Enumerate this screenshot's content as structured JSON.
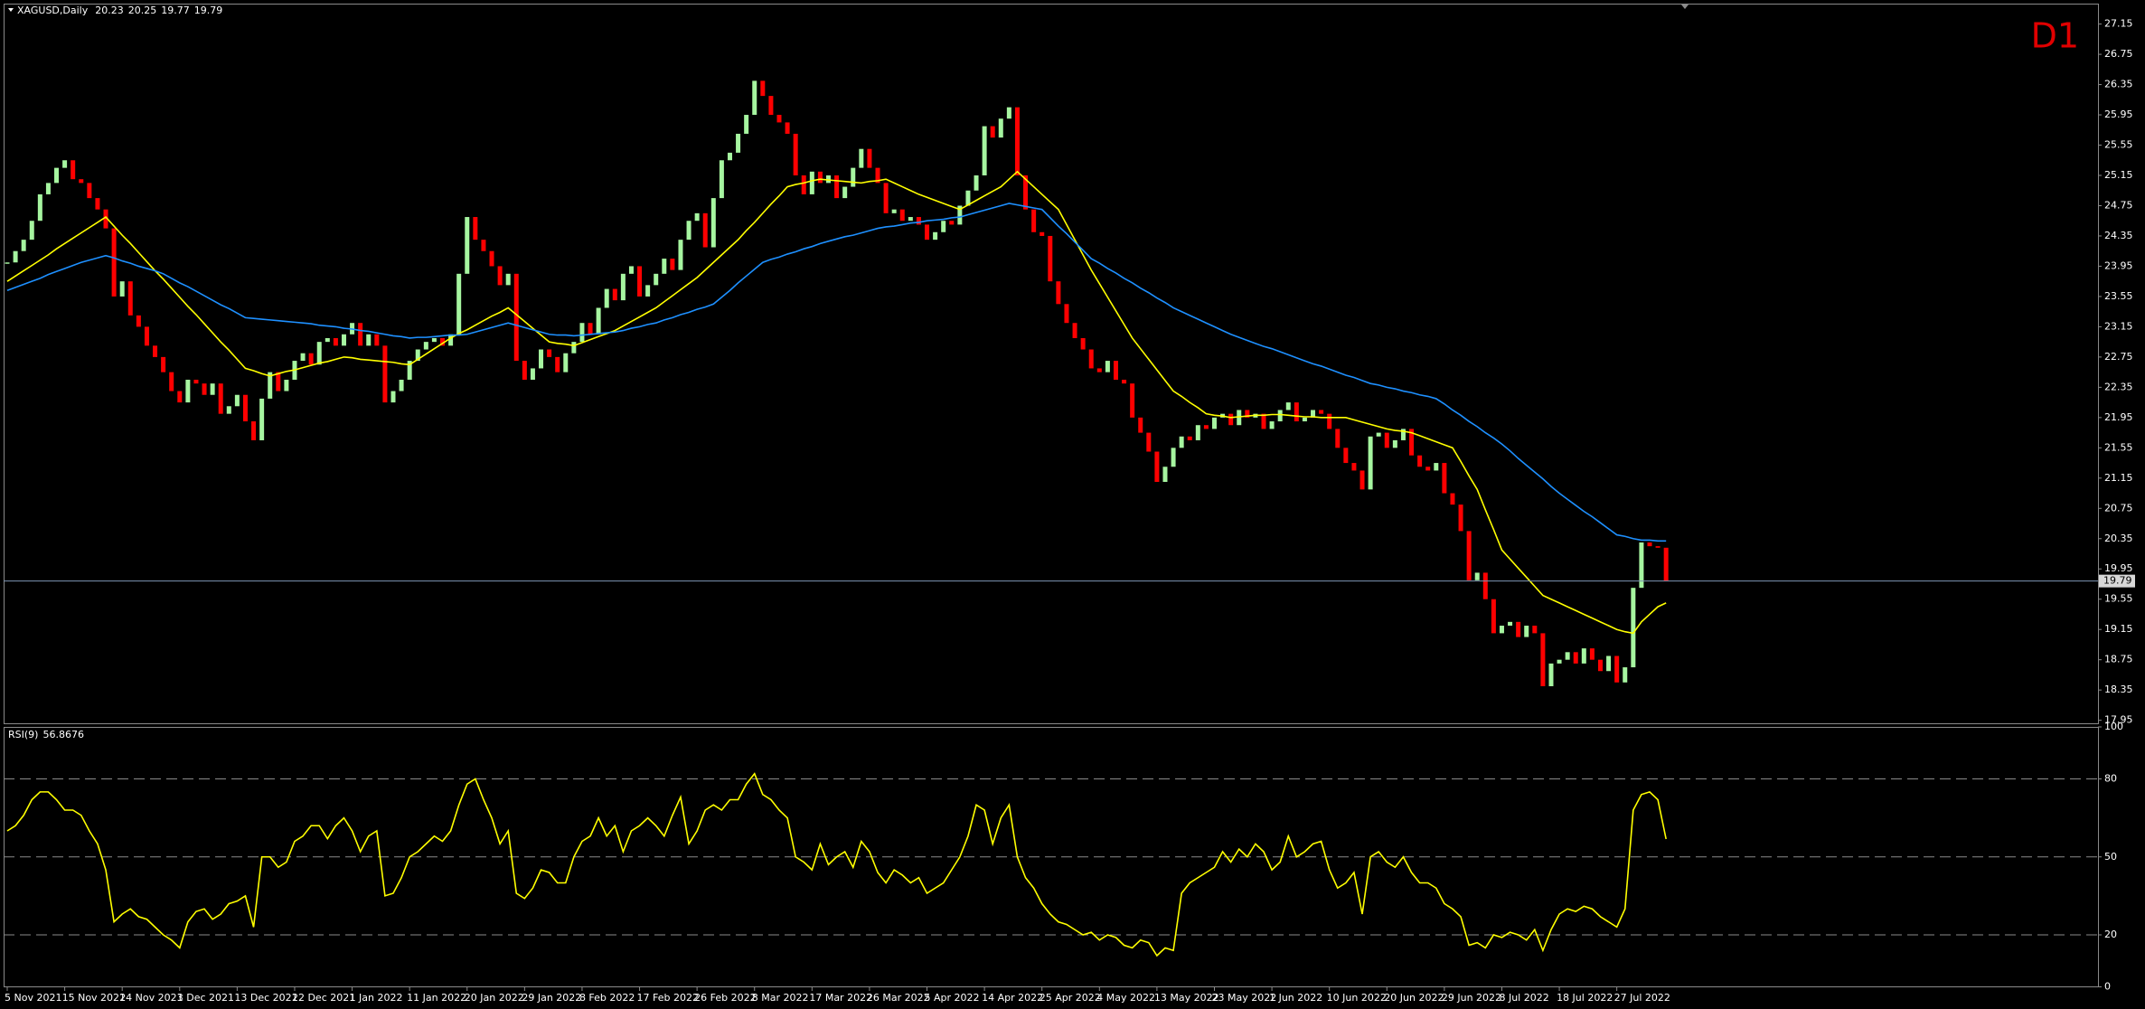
{
  "chart_data": [
    {
      "type": "candlestick",
      "title": "XAGUSD,Daily",
      "ohlc": [
        20.23,
        20.25,
        19.77,
        19.79
      ],
      "annotation": "D1",
      "categories": [
        "5 Nov 2021",
        null,
        null,
        null,
        null,
        null,
        null,
        "15 Nov 2021",
        null,
        null,
        null,
        null,
        null,
        null,
        "24 Nov 2021",
        null,
        null,
        null,
        null,
        null,
        null,
        "3 Dec 2021",
        null,
        null,
        null,
        null,
        null,
        null,
        "13 Dec 2021",
        null,
        null,
        null,
        null,
        null,
        null,
        "22 Dec 2021",
        null,
        null,
        null,
        null,
        null,
        null,
        "1 Jan 2022",
        null,
        null,
        null,
        null,
        null,
        null,
        "11 Jan 2022",
        null,
        null,
        null,
        null,
        null,
        null,
        "20 Jan 2022",
        null,
        null,
        null,
        null,
        null,
        null,
        "29 Jan 2022",
        null,
        null,
        null,
        null,
        null,
        null,
        "8 Feb 2022",
        null,
        null,
        null,
        null,
        null,
        null,
        "17 Feb 2022",
        null,
        null,
        null,
        null,
        null,
        null,
        "26 Feb 2022",
        null,
        null,
        null,
        null,
        null,
        null,
        "8 Mar 2022",
        null,
        null,
        null,
        null,
        null,
        null,
        "17 Mar 2022",
        null,
        null,
        null,
        null,
        null,
        null,
        "26 Mar 2022",
        null,
        null,
        null,
        null,
        null,
        null,
        "5 Apr 2022",
        null,
        null,
        null,
        null,
        null,
        null,
        "14 Apr 2022",
        null,
        null,
        null,
        null,
        null,
        null,
        "25 Apr 2022",
        null,
        null,
        null,
        null,
        null,
        null,
        "4 May 2022",
        null,
        null,
        null,
        null,
        null,
        null,
        "13 May 2022",
        null,
        null,
        null,
        null,
        null,
        null,
        "23 May 2022",
        null,
        null,
        null,
        null,
        null,
        null,
        "1 Jun 2022",
        null,
        null,
        null,
        null,
        null,
        null,
        "10 Jun 2022",
        null,
        null,
        null,
        null,
        null,
        null,
        "20 Jun 2022",
        null,
        null,
        null,
        null,
        null,
        null,
        "29 Jun 2022",
        null,
        null,
        null,
        null,
        null,
        null,
        "8 Jul 2022",
        null,
        null,
        null,
        null,
        null,
        null,
        "18 Jul 2022",
        null,
        null,
        null,
        null,
        null,
        null,
        "27 Jul 2022",
        null,
        null,
        null,
        null,
        null,
        null
      ],
      "close": [
        24.0,
        24.15,
        24.3,
        24.55,
        24.9,
        25.05,
        25.25,
        25.35,
        25.1,
        25.05,
        24.85,
        24.7,
        24.45,
        23.55,
        23.75,
        23.3,
        23.15,
        22.9,
        22.75,
        22.55,
        22.3,
        22.15,
        22.45,
        22.4,
        22.25,
        22.4,
        22.0,
        22.1,
        22.25,
        21.9,
        21.65,
        22.2,
        22.55,
        22.3,
        22.45,
        22.7,
        22.8,
        22.65,
        22.95,
        23.0,
        22.9,
        23.05,
        23.2,
        22.9,
        23.05,
        22.9,
        22.15,
        22.3,
        22.45,
        22.7,
        22.85,
        22.95,
        23.0,
        22.9,
        23.05,
        23.85,
        24.6,
        24.3,
        24.15,
        23.95,
        23.7,
        23.85,
        22.7,
        22.45,
        22.6,
        22.85,
        22.75,
        22.55,
        22.8,
        22.95,
        23.2,
        23.05,
        23.4,
        23.65,
        23.5,
        23.85,
        23.95,
        23.55,
        23.7,
        23.85,
        24.05,
        23.9,
        24.3,
        24.55,
        24.65,
        24.2,
        24.85,
        25.35,
        25.45,
        25.7,
        25.95,
        26.4,
        26.2,
        25.95,
        25.85,
        25.7,
        25.15,
        24.9,
        25.2,
        25.05,
        25.15,
        24.85,
        25.0,
        25.25,
        25.5,
        25.25,
        25.05,
        24.65,
        24.7,
        24.55,
        24.6,
        24.5,
        24.3,
        24.4,
        24.55,
        24.5,
        24.75,
        24.95,
        25.15,
        25.8,
        25.65,
        25.9,
        26.05,
        25.15,
        24.7,
        24.4,
        24.35,
        23.75,
        23.45,
        23.2,
        23.0,
        22.85,
        22.6,
        22.55,
        22.7,
        22.45,
        22.4,
        21.95,
        21.75,
        21.5,
        21.1,
        21.3,
        21.55,
        21.7,
        21.65,
        21.85,
        21.8,
        21.95,
        22.0,
        21.85,
        22.05,
        21.95,
        22.0,
        21.8,
        21.9,
        22.05,
        22.15,
        21.9,
        21.95,
        22.05,
        22.0,
        21.8,
        21.55,
        21.35,
        21.25,
        21.0,
        21.7,
        21.75,
        21.55,
        21.65,
        21.8,
        21.45,
        21.3,
        21.25,
        21.35,
        20.95,
        20.8,
        20.45,
        19.8,
        19.9,
        19.55,
        19.1,
        19.2,
        19.25,
        19.05,
        19.2,
        19.1,
        18.4,
        18.7,
        18.75,
        18.85,
        18.7,
        18.9,
        18.75,
        18.6,
        18.8,
        18.45,
        18.65,
        19.7,
        20.3,
        20.25,
        20.23,
        19.79
      ],
      "up_color": "#a6f5a0",
      "down_color": "#ff0000",
      "lines": [
        {
          "color": "#ffff00",
          "values": [
            23.75,
            23.82,
            23.89,
            23.96,
            24.03,
            24.1,
            24.18,
            24.25,
            24.32,
            24.39,
            24.46,
            24.53,
            24.6,
            24.48,
            24.36,
            24.25,
            24.13,
            24.01,
            23.89,
            23.78,
            23.66,
            23.54,
            23.42,
            23.31,
            23.19,
            23.07,
            22.95,
            22.84,
            22.72,
            22.6,
            22.57,
            22.53,
            22.5,
            22.53,
            22.56,
            22.58,
            22.61,
            22.64,
            22.67,
            22.69,
            22.72,
            22.75,
            22.74,
            22.72,
            22.71,
            22.7,
            22.69,
            22.68,
            22.66,
            22.65,
            22.72,
            22.79,
            22.86,
            22.93,
            23.0,
            23.06,
            23.11,
            23.17,
            23.23,
            23.29,
            23.34,
            23.4,
            23.31,
            23.22,
            23.13,
            23.04,
            22.95,
            22.93,
            22.92,
            22.9,
            22.94,
            22.98,
            23.02,
            23.06,
            23.1,
            23.16,
            23.22,
            23.28,
            23.34,
            23.4,
            23.48,
            23.56,
            23.64,
            23.72,
            23.8,
            23.9,
            24.0,
            24.1,
            24.2,
            24.3,
            24.42,
            24.53,
            24.65,
            24.77,
            24.88,
            25.0,
            25.03,
            25.05,
            25.08,
            25.1,
            25.09,
            25.08,
            25.07,
            25.06,
            25.05,
            25.07,
            25.08,
            25.1,
            25.05,
            25.0,
            24.95,
            24.9,
            24.86,
            24.82,
            24.78,
            24.74,
            24.7,
            24.76,
            24.82,
            24.88,
            24.94,
            25.0,
            25.1,
            25.2,
            25.1,
            25.0,
            24.9,
            24.8,
            24.7,
            24.5,
            24.3,
            24.1,
            23.9,
            23.72,
            23.54,
            23.36,
            23.18,
            23.0,
            22.86,
            22.72,
            22.58,
            22.44,
            22.3,
            22.23,
            22.15,
            22.08,
            22.0,
            21.98,
            21.97,
            21.95,
            21.96,
            21.97,
            21.98,
            21.98,
            21.99,
            21.99,
            21.98,
            21.97,
            21.96,
            21.96,
            21.95,
            21.95,
            21.95,
            21.95,
            21.92,
            21.89,
            21.86,
            21.83,
            21.8,
            21.78,
            21.77,
            21.75,
            21.71,
            21.67,
            21.63,
            21.59,
            21.55,
            21.37,
            21.18,
            21.0,
            20.73,
            20.47,
            20.2,
            20.08,
            19.96,
            19.84,
            19.72,
            19.6,
            19.55,
            19.5,
            19.45,
            19.4,
            19.35,
            19.3,
            19.25,
            19.2,
            19.15,
            19.12,
            19.1,
            19.25,
            19.35,
            19.45,
            19.5
          ]
        },
        {
          "color": "#1e90ff",
          "values": [
            23.63,
            23.67,
            23.71,
            23.75,
            23.79,
            23.84,
            23.88,
            23.92,
            23.96,
            24.0,
            24.03,
            24.06,
            24.09,
            24.06,
            24.02,
            23.99,
            23.95,
            23.92,
            23.89,
            23.85,
            23.79,
            23.73,
            23.68,
            23.62,
            23.56,
            23.5,
            23.44,
            23.39,
            23.33,
            23.27,
            23.26,
            23.25,
            23.24,
            23.23,
            23.22,
            23.21,
            23.2,
            23.19,
            23.17,
            23.16,
            23.15,
            23.13,
            23.12,
            23.1,
            23.09,
            23.07,
            23.05,
            23.03,
            23.02,
            23.0,
            23.01,
            23.01,
            23.02,
            23.03,
            23.04,
            23.04,
            23.05,
            23.08,
            23.11,
            23.14,
            23.17,
            23.2,
            23.17,
            23.14,
            23.11,
            23.08,
            23.05,
            23.04,
            23.04,
            23.03,
            23.04,
            23.05,
            23.06,
            23.07,
            23.08,
            23.1,
            23.13,
            23.15,
            23.18,
            23.2,
            23.24,
            23.27,
            23.31,
            23.34,
            23.38,
            23.41,
            23.45,
            23.54,
            23.63,
            23.73,
            23.82,
            23.91,
            24.0,
            24.04,
            24.07,
            24.11,
            24.14,
            24.18,
            24.21,
            24.25,
            24.28,
            24.31,
            24.34,
            24.36,
            24.39,
            24.42,
            24.45,
            24.47,
            24.48,
            24.5,
            24.52,
            24.53,
            24.55,
            24.56,
            24.57,
            24.59,
            24.6,
            24.63,
            24.66,
            24.69,
            24.72,
            24.75,
            24.78,
            24.76,
            24.74,
            24.72,
            24.7,
            24.59,
            24.48,
            24.38,
            24.27,
            24.16,
            24.05,
            23.99,
            23.92,
            23.86,
            23.79,
            23.73,
            23.66,
            23.6,
            23.53,
            23.47,
            23.4,
            23.35,
            23.3,
            23.25,
            23.2,
            23.15,
            23.1,
            23.05,
            23.01,
            22.97,
            22.93,
            22.89,
            22.86,
            22.82,
            22.78,
            22.74,
            22.7,
            22.66,
            22.63,
            22.59,
            22.55,
            22.51,
            22.48,
            22.44,
            22.4,
            22.38,
            22.35,
            22.33,
            22.3,
            22.28,
            22.25,
            22.23,
            22.2,
            22.13,
            22.05,
            21.98,
            21.9,
            21.83,
            21.75,
            21.68,
            21.6,
            21.51,
            21.41,
            21.32,
            21.23,
            21.14,
            21.04,
            20.95,
            20.87,
            20.79,
            20.71,
            20.64,
            20.56,
            20.48,
            20.4,
            20.38,
            20.35,
            20.33,
            20.33,
            20.32,
            20.32
          ]
        }
      ],
      "current_price": 19.79,
      "current_color": "#7d95b5",
      "ylim": [
        17.91,
        27.42
      ],
      "yticks": [
        27.15,
        26.75,
        26.35,
        25.95,
        25.55,
        25.15,
        24.75,
        24.35,
        23.95,
        23.55,
        23.15,
        22.75,
        22.35,
        21.95,
        21.55,
        21.15,
        20.75,
        20.35,
        19.95,
        19.55,
        19.15,
        18.75,
        18.35,
        17.95
      ]
    },
    {
      "type": "line",
      "title": "RSI(9)",
      "series": [
        {
          "color": "#ffff00",
          "values": [
            60,
            62,
            66,
            72,
            75,
            75,
            72,
            68,
            68,
            66,
            60,
            55,
            45,
            25,
            28,
            30,
            27,
            26,
            23,
            20,
            18,
            15,
            25,
            29,
            30,
            26,
            28,
            32,
            33,
            35,
            23,
            50,
            50,
            46,
            48,
            56,
            58,
            62,
            62,
            57,
            62,
            65,
            60,
            52,
            58,
            60,
            35,
            36,
            42,
            50,
            52,
            55,
            58,
            56,
            60,
            70,
            78,
            80,
            72,
            65,
            55,
            60,
            36,
            34,
            38,
            45,
            44,
            40,
            40,
            50,
            56,
            58,
            65,
            58,
            62,
            52,
            60,
            62,
            65,
            62,
            58,
            66,
            73,
            55,
            60,
            68,
            70,
            68,
            72,
            72,
            78,
            82,
            74,
            72,
            68,
            65,
            50,
            48,
            45,
            55,
            47,
            50,
            52,
            46,
            56,
            52,
            44,
            40,
            45,
            43,
            40,
            42,
            36,
            38,
            40,
            45,
            50,
            58,
            70,
            68,
            55,
            65,
            70,
            50,
            42,
            38,
            32,
            28,
            25,
            24,
            22,
            20,
            21,
            18,
            20,
            19,
            16,
            15,
            18,
            17,
            12,
            15,
            14,
            36,
            40,
            42,
            44,
            46,
            52,
            48,
            53,
            50,
            55,
            52,
            45,
            48,
            58,
            50,
            52,
            55,
            56,
            45,
            38,
            40,
            44,
            28,
            50,
            52,
            48,
            46,
            50,
            44,
            40,
            40,
            38,
            32,
            30,
            27,
            16,
            17,
            15,
            20,
            19,
            21,
            20,
            18,
            22,
            14,
            22,
            28,
            30,
            29,
            31,
            30,
            27,
            25,
            23,
            30,
            68,
            74,
            75,
            72,
            56.8676
          ]
        }
      ],
      "ylim": [
        0,
        100
      ],
      "yticks": [
        100,
        80,
        50,
        20,
        0
      ]
    }
  ]
}
